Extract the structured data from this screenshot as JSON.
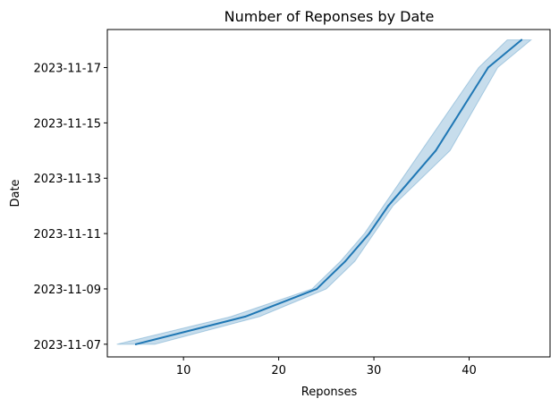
{
  "chart_data": {
    "type": "line",
    "title": "Number of Reponses by Date",
    "xlabel": "Reponses",
    "ylabel": "Date",
    "xlim": [
      2,
      48.5
    ],
    "ylim": [
      "2023-11-06T13:00",
      "2023-11-18T09:00"
    ],
    "x_ticks": [
      10,
      20,
      30,
      40
    ],
    "y_ticks": [
      "2023-11-07",
      "2023-11-09",
      "2023-11-11",
      "2023-11-13",
      "2023-11-15",
      "2023-11-17"
    ],
    "grid": false,
    "colors": {
      "line": "#1f77b4",
      "band": "#1f77b4"
    },
    "series": [
      {
        "points": [
          {
            "date": "2023-11-07",
            "x": 5,
            "x_low": 3,
            "x_high": 7
          },
          {
            "date": "2023-11-08",
            "x": 16.5,
            "x_low": 15,
            "x_high": 18
          },
          {
            "date": "2023-11-09",
            "x": 24,
            "x_low": 23.5,
            "x_high": 25
          },
          {
            "date": "2023-11-10",
            "x": 27,
            "x_low": 26.5,
            "x_high": 28
          },
          {
            "date": "2023-11-11",
            "x": 29.5,
            "x_low": 29,
            "x_high": 30
          },
          {
            "date": "2023-11-12",
            "x": 31.5,
            "x_low": 31,
            "x_high": 32
          },
          {
            "date": "2023-11-14",
            "x": 36.5,
            "x_low": 35,
            "x_high": 38
          },
          {
            "date": "2023-11-17",
            "x": 42,
            "x_low": 41,
            "x_high": 43
          },
          {
            "date": "2023-11-18",
            "x": 45.5,
            "x_low": 44,
            "x_high": 46.5
          }
        ]
      }
    ]
  }
}
